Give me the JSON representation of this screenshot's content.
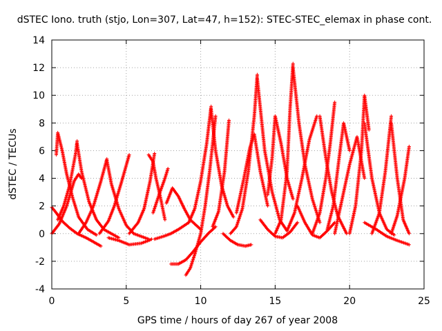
{
  "chart_data": {
    "type": "scatter",
    "title": "dSTEC Iono. truth (stjo, Lon=307, Lat=47, h=152): STEC-STEC_elemax in phase cont.",
    "xlabel": "GPS time / hours of day 267 of year 2008",
    "ylabel": "dSTEC  / TECUs",
    "xlim": [
      0,
      25
    ],
    "ylim": [
      -4,
      14
    ],
    "xticks": [
      0,
      5,
      10,
      15,
      20,
      25
    ],
    "yticks": [
      -4,
      -2,
      0,
      2,
      4,
      6,
      8,
      10,
      12,
      14
    ],
    "grid": true,
    "marker": "+",
    "color": "#ff0000",
    "series": [
      {
        "x": [
          0.0,
          0.3,
          0.7,
          1.2,
          1.7,
          2.3,
          2.8,
          3.3
        ],
        "y": [
          1.9,
          1.5,
          0.9,
          0.4,
          0.0,
          -0.3,
          -0.6,
          -0.9
        ]
      },
      {
        "x": [
          0.0,
          0.5,
          1.0,
          1.5,
          1.8,
          2.0
        ],
        "y": [
          0.0,
          0.7,
          2.0,
          3.8,
          4.3,
          4.0
        ]
      },
      {
        "x": [
          0.3,
          0.4,
          0.7,
          1.0,
          1.4,
          1.8,
          2.4,
          3.0
        ],
        "y": [
          5.7,
          7.3,
          6.0,
          4.3,
          2.6,
          1.2,
          0.3,
          -0.1
        ]
      },
      {
        "x": [
          0.4,
          0.8,
          1.2,
          1.6,
          1.7
        ],
        "y": [
          1.0,
          2.0,
          3.5,
          5.8,
          6.7
        ]
      },
      {
        "x": [
          1.7,
          2.0,
          2.5,
          3.0,
          3.5,
          4.5
        ],
        "y": [
          6.5,
          4.5,
          2.3,
          1.0,
          0.3,
          -0.3
        ]
      },
      {
        "x": [
          1.8,
          2.3,
          2.8,
          3.3,
          3.7
        ],
        "y": [
          0.0,
          0.8,
          2.0,
          3.8,
          5.4
        ]
      },
      {
        "x": [
          3.7,
          4.0,
          4.5,
          5.0,
          5.5,
          6.5
        ],
        "y": [
          5.3,
          3.6,
          1.8,
          0.6,
          0.0,
          -0.4
        ]
      },
      {
        "x": [
          3.2,
          3.8,
          4.2,
          4.7,
          5.2
        ],
        "y": [
          0.0,
          0.9,
          2.0,
          3.8,
          5.7
        ]
      },
      {
        "x": [
          3.8,
          4.5,
          5.2,
          6.0,
          6.5,
          6.7
        ],
        "y": [
          -0.3,
          -0.5,
          -0.8,
          -0.7,
          -0.5,
          -0.4
        ]
      },
      {
        "x": [
          6.5,
          6.8,
          7.0,
          7.3,
          7.6
        ],
        "y": [
          5.7,
          5.2,
          4.0,
          2.6,
          1.0
        ]
      },
      {
        "x": [
          5.2,
          5.8,
          6.2,
          6.6,
          6.9
        ],
        "y": [
          0.0,
          0.8,
          1.8,
          3.8,
          5.8
        ]
      },
      {
        "x": [
          6.9,
          7.5,
          8.0,
          8.5,
          9.2
        ],
        "y": [
          -0.4,
          -0.2,
          0.0,
          0.3,
          0.8
        ]
      },
      {
        "x": [
          6.8,
          7.2,
          7.6,
          7.8
        ],
        "y": [
          1.5,
          2.8,
          4.0,
          4.7
        ]
      },
      {
        "x": [
          7.7,
          8.1,
          8.5,
          8.9,
          9.3,
          9.8,
          10.0
        ],
        "y": [
          2.2,
          3.3,
          2.7,
          1.8,
          1.0,
          0.5,
          0.3
        ]
      },
      {
        "x": [
          8.0,
          8.5,
          9.0,
          9.5,
          10.0,
          10.5,
          11.0
        ],
        "y": [
          -2.2,
          -2.2,
          -1.9,
          -1.3,
          -0.6,
          0.0,
          0.5
        ]
      },
      {
        "x": [
          9.0,
          9.3,
          9.6,
          10.0,
          10.3,
          10.6,
          11.0
        ],
        "y": [
          -3.0,
          -2.5,
          -1.5,
          0.0,
          2.0,
          4.5,
          8.5
        ]
      },
      {
        "x": [
          9.2,
          9.6,
          10.0,
          10.4,
          10.7
        ],
        "y": [
          0.8,
          1.8,
          3.8,
          6.5,
          9.2
        ]
      },
      {
        "x": [
          10.7,
          11.0,
          11.4,
          11.8,
          12.2
        ],
        "y": [
          9.0,
          6.0,
          3.5,
          2.0,
          1.2
        ]
      },
      {
        "x": [
          10.8,
          11.2,
          11.6,
          11.9
        ],
        "y": [
          0.5,
          1.6,
          4.5,
          8.2
        ]
      },
      {
        "x": [
          12.0,
          12.4,
          12.8,
          13.2,
          13.6,
          13.8
        ],
        "y": [
          0.0,
          0.5,
          1.8,
          4.5,
          8.5,
          11.5
        ]
      },
      {
        "x": [
          11.5,
          12.0,
          12.5,
          13.0,
          13.4
        ],
        "y": [
          0.0,
          -0.5,
          -0.8,
          -0.9,
          -0.8
        ]
      },
      {
        "x": [
          12.4,
          12.9,
          13.3,
          13.6,
          14.0,
          14.5
        ],
        "y": [
          1.5,
          4.0,
          6.2,
          7.2,
          4.5,
          2.0
        ]
      },
      {
        "x": [
          13.8,
          14.3,
          14.8,
          15.3,
          15.8
        ],
        "y": [
          11.2,
          6.0,
          3.0,
          1.0,
          0.2
        ]
      },
      {
        "x": [
          14.5,
          14.8,
          15.0,
          15.4,
          15.8,
          16.2
        ],
        "y": [
          2.8,
          5.5,
          8.5,
          6.5,
          4.0,
          2.5
        ]
      },
      {
        "x": [
          14.0,
          14.5,
          15.0,
          15.5,
          16.0,
          16.5
        ],
        "y": [
          1.0,
          0.3,
          -0.2,
          -0.3,
          0.1,
          0.8
        ]
      },
      {
        "x": [
          15.0,
          15.4,
          15.8,
          16.0,
          16.2
        ],
        "y": [
          0.0,
          1.0,
          4.5,
          9.0,
          12.3
        ]
      },
      {
        "x": [
          16.2,
          16.6,
          17.0,
          17.5,
          18.0
        ],
        "y": [
          12.0,
          8.0,
          5.0,
          2.5,
          0.8
        ]
      },
      {
        "x": [
          15.8,
          16.3,
          16.8,
          17.3,
          17.8
        ],
        "y": [
          0.2,
          1.5,
          4.0,
          6.8,
          8.5
        ]
      },
      {
        "x": [
          16.5,
          17.0,
          17.5,
          18.0,
          18.5,
          19.0
        ],
        "y": [
          2.0,
          0.8,
          -0.1,
          -0.3,
          0.2,
          0.8
        ]
      },
      {
        "x": [
          17.5,
          18.0,
          18.4,
          18.7,
          19.0
        ],
        "y": [
          0.0,
          1.5,
          4.0,
          6.5,
          9.5
        ]
      },
      {
        "x": [
          18.0,
          18.4,
          18.8,
          19.2,
          19.8
        ],
        "y": [
          8.5,
          5.5,
          3.0,
          1.3,
          0.0
        ]
      },
      {
        "x": [
          18.5,
          18.9,
          19.3,
          19.6,
          20.0
        ],
        "y": [
          0.3,
          2.0,
          5.5,
          8.0,
          6.0
        ]
      },
      {
        "x": [
          19.0,
          19.5,
          20.0,
          20.5,
          21.0
        ],
        "y": [
          0.0,
          2.5,
          5.0,
          7.0,
          4.0
        ]
      },
      {
        "x": [
          20.0,
          20.4,
          20.8,
          21.0,
          21.3
        ],
        "y": [
          0.0,
          2.0,
          6.0,
          10.0,
          7.5
        ]
      },
      {
        "x": [
          21.0,
          21.5,
          22.0,
          22.5,
          23.0
        ],
        "y": [
          8.0,
          4.0,
          1.5,
          0.3,
          -0.1
        ]
      },
      {
        "x": [
          21.5,
          22.0,
          22.4,
          22.8
        ],
        "y": [
          0.0,
          1.5,
          4.5,
          8.5
        ]
      },
      {
        "x": [
          22.8,
          23.2,
          23.6,
          24.0
        ],
        "y": [
          8.0,
          4.0,
          1.0,
          0.0
        ]
      },
      {
        "x": [
          22.8,
          23.2,
          23.7,
          24.0
        ],
        "y": [
          0.0,
          1.3,
          4.0,
          6.3
        ]
      },
      {
        "x": [
          21.0,
          21.8,
          22.5,
          23.2,
          24.0
        ],
        "y": [
          0.8,
          0.3,
          -0.2,
          -0.5,
          -0.8
        ]
      }
    ]
  }
}
